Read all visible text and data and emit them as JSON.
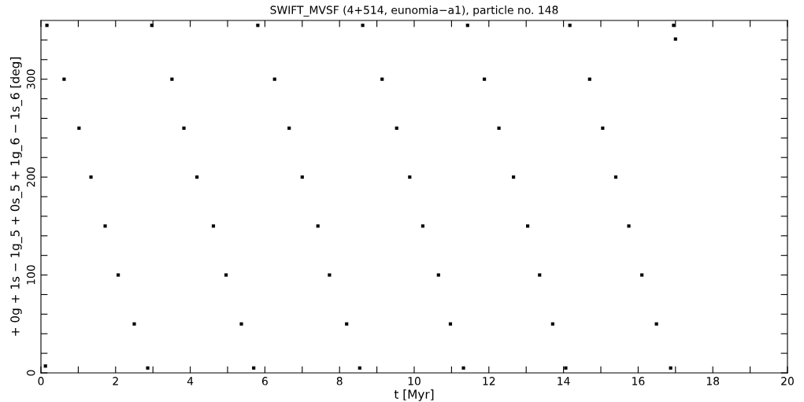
{
  "chart_data": {
    "type": "scatter",
    "title": "SWIFT_MVSF (4+514, eunomia−a1), particle no. 148",
    "xlabel": "t [Myr]",
    "ylabel": "+ 0g + 1s − 1g_5 + 0s_5 + 1g_6 − 1s_6 [deg]",
    "series": [
      {
        "color": "#000000",
        "x": [
          0.16,
          0.62,
          1.02,
          1.34,
          1.72,
          2.07,
          2.5,
          2.86,
          0.12,
          2.97,
          3.51,
          3.83,
          4.18,
          4.62,
          4.96,
          5.37,
          5.7,
          5.81,
          6.26,
          6.65,
          7.0,
          7.42,
          7.73,
          8.19,
          8.54,
          8.62,
          9.14,
          9.53,
          9.88,
          10.23,
          10.65,
          10.97,
          11.32,
          11.43,
          11.88,
          12.27,
          12.66,
          13.04,
          13.36,
          13.71,
          14.06,
          14.17,
          14.7,
          15.05,
          15.4,
          15.75,
          16.1,
          16.49,
          16.87,
          16.95,
          17.0
        ],
        "values": [
          355,
          300,
          250,
          200,
          150,
          100,
          50,
          5,
          7,
          355,
          300,
          250,
          200,
          150,
          100,
          50,
          5,
          355,
          300,
          250,
          200,
          150,
          100,
          50,
          5,
          355,
          300,
          250,
          200,
          150,
          100,
          50,
          5,
          355,
          300,
          250,
          200,
          150,
          100,
          50,
          5,
          355,
          300,
          250,
          200,
          150,
          100,
          50,
          5,
          355,
          341
        ]
      }
    ],
    "xlim": [
      0,
      20
    ],
    "xticks": [
      0,
      {
        "value": 1,
        "label": null
      },
      2,
      {
        "value": 3,
        "label": null
      },
      4,
      {
        "value": 5,
        "label": null
      },
      6,
      {
        "value": 7,
        "label": null
      },
      8,
      {
        "value": 9,
        "label": null
      },
      10,
      {
        "value": 11,
        "label": null
      },
      12,
      {
        "value": 13,
        "label": null
      },
      14,
      {
        "value": 15,
        "label": null
      },
      16,
      {
        "value": 17,
        "label": null
      },
      18,
      {
        "value": 19,
        "label": null
      },
      20
    ],
    "ylim": [
      0,
      360
    ],
    "yticks": [
      0,
      {
        "value": 20,
        "label": null
      },
      {
        "value": 40,
        "label": null
      },
      {
        "value": 60,
        "label": null
      },
      {
        "value": 80,
        "label": null
      },
      100,
      {
        "value": 120,
        "label": null
      },
      {
        "value": 140,
        "label": null
      },
      {
        "value": 160,
        "label": null
      },
      {
        "value": 180,
        "label": null
      },
      200,
      {
        "value": 220,
        "label": null
      },
      {
        "value": 240,
        "label": null
      },
      {
        "value": 260,
        "label": null
      },
      {
        "value": 280,
        "label": null
      },
      300,
      {
        "value": 320,
        "label": null
      },
      {
        "value": 340,
        "label": null
      }
    ],
    "marker": "square",
    "grid": false
  }
}
